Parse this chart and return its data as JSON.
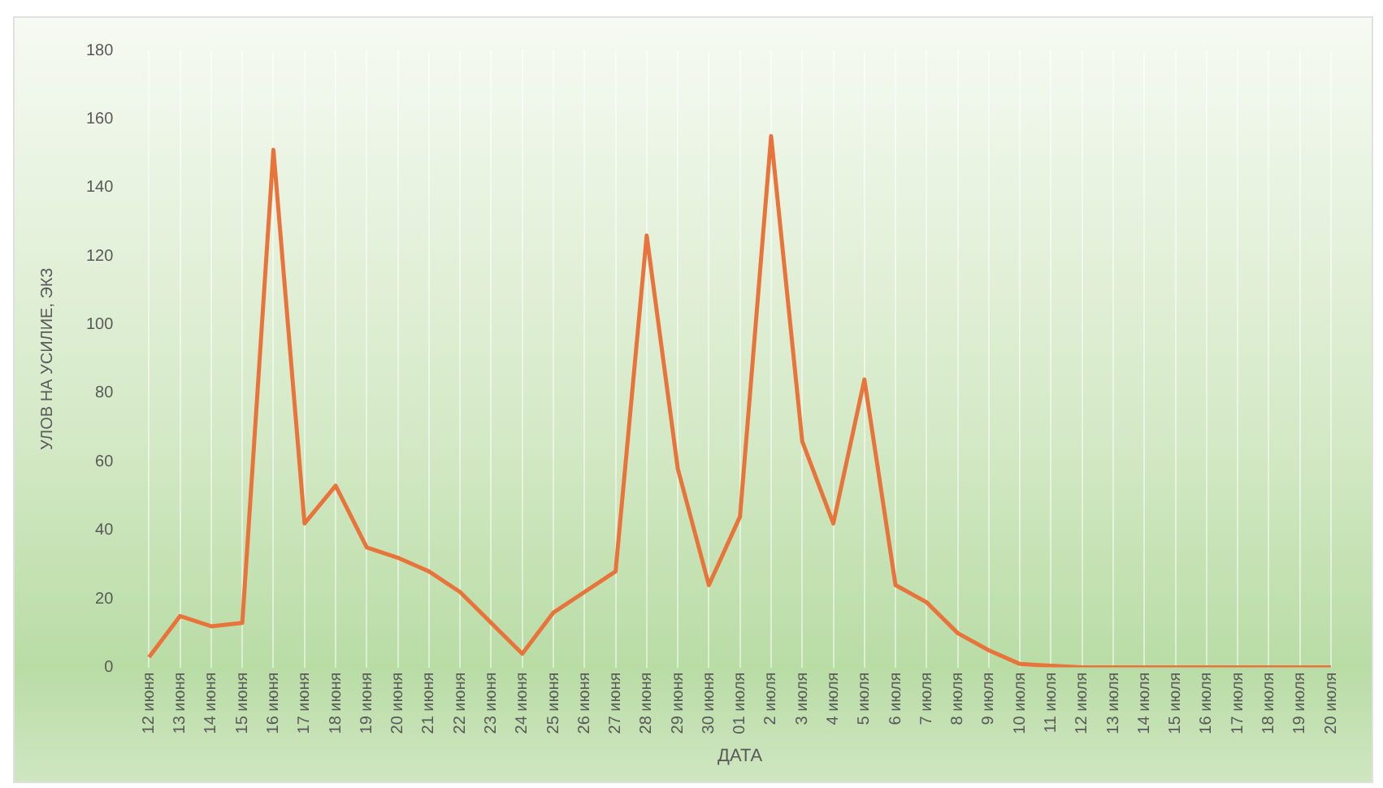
{
  "chart_data": {
    "type": "line",
    "xlabel": "ДАТА",
    "ylabel": "УЛОВ НА УСИЛИЕ, ЭКЗ",
    "categories": [
      "12 июня",
      "13 июня",
      "14 июня",
      "15 июня",
      "16 июня",
      "17 июня",
      "18 июня",
      "19 июня",
      "20 июня",
      "21 июня",
      "22 июня",
      "23 июня",
      "24 июня",
      "25 июня",
      "26 июня",
      "27 июня",
      "28 июня",
      "29 июня",
      "30 июня",
      "01 июля",
      "2 июля",
      "3 июля",
      "4 июля",
      "5 июля",
      "6 июля",
      "7 июля",
      "8 июля",
      "9 июля",
      "10 июля",
      "11 июля",
      "12 июля",
      "13 июля",
      "14 июля",
      "15 июля",
      "16 июля",
      "17 июля",
      "18 июля",
      "19 июля",
      "20 июля"
    ],
    "series": [
      {
        "color": "#e8743b",
        "values": [
          3,
          15,
          12,
          13,
          151,
          42,
          53,
          35,
          32,
          28,
          22,
          13,
          4,
          16,
          22,
          28,
          126,
          58,
          24,
          44,
          155,
          66,
          42,
          84,
          24,
          19,
          10,
          5,
          1,
          0.5,
          0,
          0,
          0,
          0,
          0,
          0,
          0,
          0,
          0
        ]
      }
    ],
    "ylim": [
      0,
      180
    ],
    "yticks": [
      0,
      20,
      40,
      60,
      80,
      100,
      120,
      140,
      160,
      180
    ],
    "grid": "x",
    "legend": false,
    "marker": "none",
    "line_style": "solid"
  }
}
